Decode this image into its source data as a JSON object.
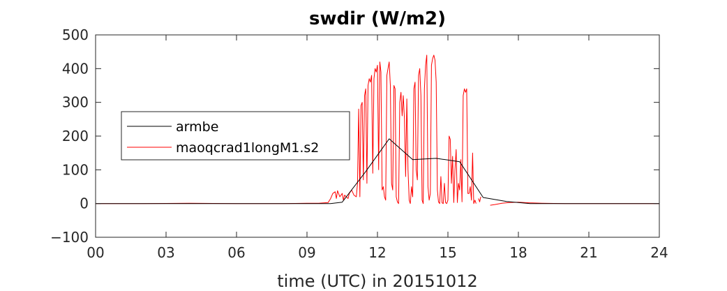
{
  "chart_data": {
    "type": "line",
    "title": "swdir  (W/m2)",
    "xlabel": "time (UTC) in 20151012",
    "ylabel": "",
    "xlim": [
      0,
      24
    ],
    "ylim": [
      -100,
      500
    ],
    "x_ticks": [
      0,
      3,
      6,
      9,
      12,
      15,
      18,
      21,
      24
    ],
    "x_tick_labels": [
      "00",
      "03",
      "06",
      "09",
      "12",
      "15",
      "18",
      "21",
      "24"
    ],
    "y_ticks": [
      -100,
      0,
      100,
      200,
      300,
      400,
      500
    ],
    "y_tick_labels": [
      "−100",
      "0",
      "100",
      "200",
      "300",
      "400",
      "500"
    ],
    "legend_position": "left",
    "series": [
      {
        "name": "armbe",
        "color": "#000000",
        "x": [
          0,
          10,
          10.5,
          11.5,
          12.5,
          13.5,
          14.5,
          15.5,
          16.5,
          17.5,
          18.5,
          24
        ],
        "y": [
          0,
          0,
          4,
          95,
          192,
          130,
          134,
          124,
          18,
          6,
          0,
          0
        ]
      },
      {
        "name": "maoqcrad1longM1.s2",
        "color": "#ff0000",
        "segments": [
          {
            "x": [
              0,
              2,
              4,
              6,
              8,
              9,
              9.5,
              9.9,
              10.0,
              10.1,
              10.2,
              10.25,
              10.3,
              10.4,
              10.5,
              10.55,
              10.6,
              10.7,
              10.75,
              10.8,
              10.9,
              11.0,
              11.1,
              11.15,
              11.2,
              11.25,
              11.3,
              11.35,
              11.4,
              11.45,
              11.5,
              11.55,
              11.6,
              11.65,
              11.7,
              11.75,
              11.8,
              11.85,
              11.9,
              11.95,
              12.0,
              12.05,
              12.1,
              12.15,
              12.2,
              12.25,
              12.3,
              12.35,
              12.4,
              12.45,
              12.5,
              12.55,
              12.6,
              12.65,
              12.7,
              12.75,
              12.8,
              12.85,
              12.9,
              12.95,
              13.0,
              13.05,
              13.1,
              13.15,
              13.2,
              13.25,
              13.3,
              13.35,
              13.4,
              13.45,
              13.5,
              13.55,
              13.6,
              13.65,
              13.7,
              13.75,
              13.8,
              13.85,
              13.9,
              13.95,
              14.0,
              14.05,
              14.1,
              14.15,
              14.2,
              14.25,
              14.3,
              14.35,
              14.4,
              14.45,
              14.5,
              14.55,
              14.6,
              14.65,
              14.7,
              14.75,
              14.8,
              14.85,
              14.9,
              14.95,
              15.0,
              15.05,
              15.1,
              15.15,
              15.2,
              15.25,
              15.3,
              15.35,
              15.4,
              15.45,
              15.5,
              15.55,
              15.6,
              15.65,
              15.7,
              15.75,
              15.8,
              15.85,
              15.9,
              15.95,
              16.0,
              16.05,
              16.1,
              16.15,
              16.2
            ],
            "y": [
              0,
              0,
              1,
              0,
              0,
              1,
              1,
              3,
              14,
              30,
              35,
              15,
              38,
              20,
              30,
              10,
              25,
              18,
              15,
              30,
              40,
              25,
              20,
              60,
              280,
              20,
              290,
              300,
              70,
              320,
              340,
              60,
              350,
              370,
              360,
              380,
              90,
              370,
              400,
              390,
              410,
              100,
              420,
              390,
              40,
              50,
              20,
              10,
              380,
              400,
              420,
              350,
              60,
              40,
              350,
              340,
              20,
              5,
              0,
              300,
              330,
              260,
              320,
              250,
              80,
              310,
              100,
              10,
              0,
              50,
              20,
              340,
              360,
              100,
              70,
              380,
              400,
              320,
              10,
              0,
              340,
              410,
              440,
              50,
              10,
              30,
              410,
              430,
              440,
              425,
              360,
              40,
              5,
              0,
              80,
              2,
              0,
              60,
              3,
              0,
              10,
              200,
              190,
              60,
              140,
              3,
              100,
              160,
              3,
              60,
              40,
              130,
              5,
              320,
              340,
              330,
              340,
              30,
              30,
              50,
              10,
              150,
              0,
              10,
              0
            ]
          },
          {
            "x": [
              16.3,
              16.35,
              16.4
            ],
            "y": [
              15,
              5,
              20
            ]
          },
          {
            "x": [
              16.8,
              17.0,
              17.3,
              17.6,
              18.0,
              18.5,
              19.0,
              20.0,
              22.0,
              24.0
            ],
            "y": [
              -5,
              -3,
              1,
              3,
              4,
              2,
              1,
              0,
              0,
              0
            ]
          }
        ]
      }
    ]
  }
}
